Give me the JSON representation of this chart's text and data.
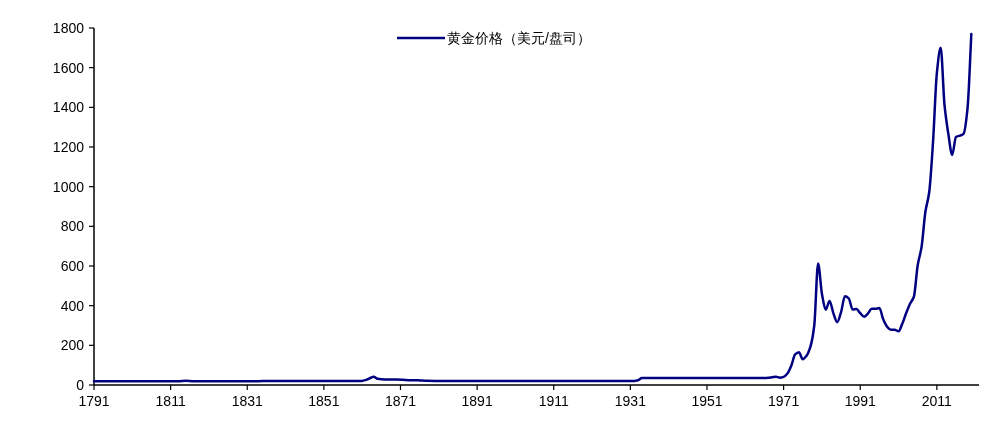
{
  "chart_data": {
    "type": "line",
    "x": [
      1791,
      1800,
      1810,
      1813,
      1815,
      1817,
      1820,
      1830,
      1834,
      1836,
      1840,
      1850,
      1860,
      1861,
      1862,
      1863,
      1864,
      1865,
      1866,
      1868,
      1870,
      1873,
      1875,
      1876,
      1878,
      1880,
      1890,
      1900,
      1910,
      1920,
      1930,
      1932,
      1933,
      1934,
      1935,
      1940,
      1950,
      1960,
      1966,
      1967,
      1968,
      1969,
      1970,
      1971,
      1972,
      1973,
      1974,
      1975,
      1976,
      1977,
      1978,
      1979,
      1980,
      1981,
      1982,
      1983,
      1984,
      1985,
      1986,
      1987,
      1988,
      1989,
      1990,
      1991,
      1992,
      1993,
      1994,
      1995,
      1996,
      1997,
      1998,
      1999,
      2000,
      2001,
      2002,
      2003,
      2004,
      2005,
      2006,
      2007,
      2008,
      2009,
      2010,
      2011,
      2012,
      2013,
      2014,
      2015,
      2016,
      2017,
      2018,
      2019,
      2020
    ],
    "series": [
      {
        "name": "黄金价格（美元/盘司）",
        "color": "#000080",
        "values": [
          19.4,
          19.4,
          19.4,
          19.4,
          22,
          19.4,
          19.4,
          19.4,
          19.4,
          20.7,
          20.7,
          20.7,
          20.7,
          20.7,
          26,
          34,
          42,
          31,
          29,
          28,
          28,
          24,
          24,
          23,
          21,
          20.7,
          20.7,
          20.7,
          20.7,
          20.7,
          20.7,
          20.7,
          24,
          35,
          35,
          35,
          35,
          35,
          35,
          36,
          39,
          42,
          37,
          41,
          58,
          97,
          154,
          165,
          130,
          148,
          193,
          300,
          612,
          460,
          380,
          424,
          361,
          317,
          368,
          447,
          437,
          381,
          383,
          362,
          344,
          360,
          384,
          384,
          388,
          331,
          294,
          279,
          279,
          271,
          310,
          363,
          410,
          445,
          604,
          695,
          872,
          972,
          1225,
          1572,
          1700,
          1411,
          1266,
          1160,
          1251,
          1257,
          1268,
          1393,
          1770
        ]
      }
    ],
    "xlim": [
      1791,
      2022
    ],
    "xticks": [
      1791,
      1811,
      1831,
      1851,
      1871,
      1891,
      1911,
      1931,
      1951,
      1971,
      1991,
      2011
    ],
    "ylim": [
      0,
      1800
    ],
    "yticks": [
      0,
      200,
      400,
      600,
      800,
      1000,
      1200,
      1400,
      1600,
      1800
    ],
    "legend": "top",
    "grid": false,
    "line_style": "solid"
  }
}
